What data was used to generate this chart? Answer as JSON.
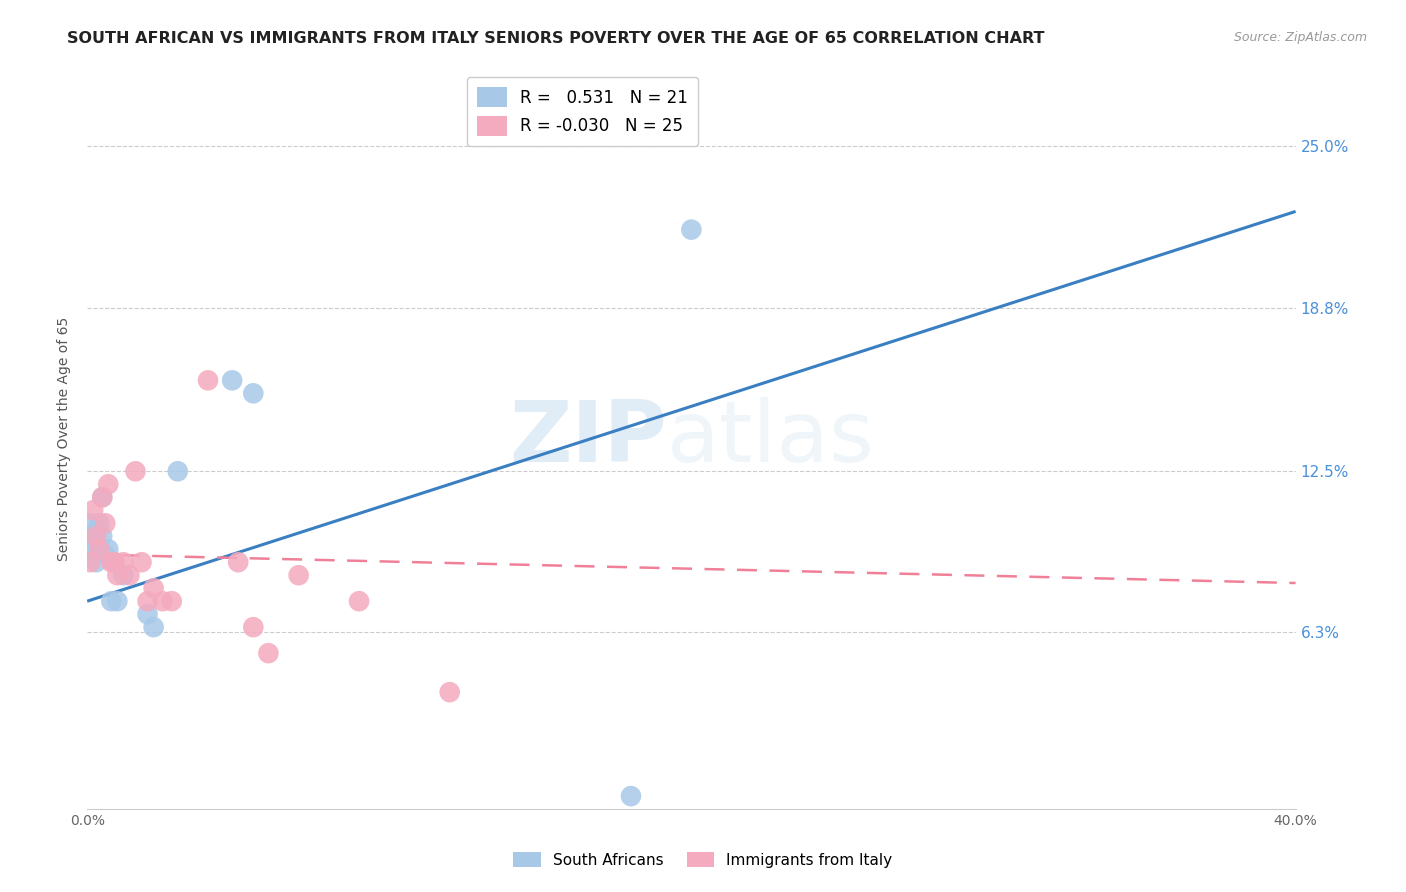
{
  "title": "SOUTH AFRICAN VS IMMIGRANTS FROM ITALY SENIORS POVERTY OVER THE AGE OF 65 CORRELATION CHART",
  "source": "Source: ZipAtlas.com",
  "ylabel": "Seniors Poverty Over the Age of 65",
  "xlim": [
    0.0,
    0.4
  ],
  "ylim": [
    -0.005,
    0.28
  ],
  "ytick_values": [
    0.063,
    0.125,
    0.188,
    0.25
  ],
  "ytick_labels": [
    "6.3%",
    "12.5%",
    "18.8%",
    "25.0%"
  ],
  "watermark_zip": "ZIP",
  "watermark_atlas": "atlas",
  "blue_color": "#a8c8e8",
  "pink_color": "#f4aabf",
  "blue_line_color": "#3a7fc1",
  "pink_line_color": "#f08098",
  "right_label_color": "#4a90d9",
  "title_fontsize": 11.5,
  "south_africans_x": [
    0.001,
    0.001,
    0.002,
    0.003,
    0.003,
    0.004,
    0.005,
    0.005,
    0.006,
    0.007,
    0.008,
    0.009,
    0.01,
    0.012,
    0.02,
    0.022,
    0.03,
    0.048,
    0.055,
    0.18,
    0.2
  ],
  "south_africans_y": [
    0.095,
    0.105,
    0.098,
    0.102,
    0.09,
    0.105,
    0.1,
    0.115,
    0.093,
    0.095,
    0.075,
    0.09,
    0.075,
    0.085,
    0.07,
    0.065,
    0.125,
    0.16,
    0.155,
    0.0,
    0.218
  ],
  "italy_x": [
    0.001,
    0.002,
    0.003,
    0.004,
    0.005,
    0.006,
    0.007,
    0.008,
    0.009,
    0.01,
    0.012,
    0.014,
    0.016,
    0.018,
    0.02,
    0.022,
    0.025,
    0.028,
    0.04,
    0.05,
    0.055,
    0.06,
    0.07,
    0.09,
    0.12
  ],
  "italy_y": [
    0.09,
    0.11,
    0.1,
    0.095,
    0.115,
    0.105,
    0.12,
    0.09,
    0.09,
    0.085,
    0.09,
    0.085,
    0.125,
    0.09,
    0.075,
    0.08,
    0.075,
    0.075,
    0.16,
    0.09,
    0.065,
    0.055,
    0.085,
    0.075,
    0.04
  ],
  "blue_line_x": [
    0.0,
    0.4
  ],
  "blue_line_y": [
    0.075,
    0.225
  ],
  "pink_line_x": [
    0.0,
    0.4
  ],
  "pink_line_y": [
    0.093,
    0.082
  ]
}
